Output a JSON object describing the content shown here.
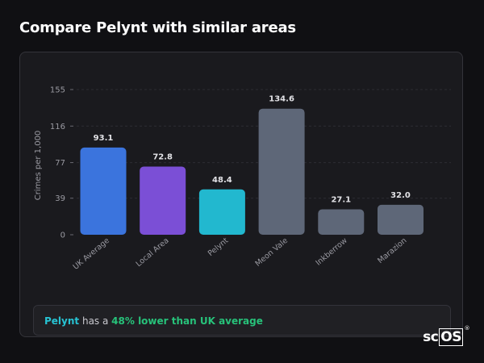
{
  "page": {
    "title": "Compare Pelynt with similar areas"
  },
  "chart_data": {
    "type": "bar",
    "title": "",
    "xlabel": "",
    "ylabel": "Crimes per 1,000",
    "ylim": [
      0,
      155
    ],
    "yticks": [
      0,
      39,
      77,
      116,
      155
    ],
    "grid": true,
    "legend": "none",
    "categories": [
      "UK Average",
      "Local Area",
      "Pelynt",
      "Meon Vale",
      "Inkberrow",
      "Marazion"
    ],
    "values": [
      93.1,
      72.8,
      48.4,
      134.6,
      27.1,
      32.0
    ],
    "value_labels": [
      "93.1",
      "72.8",
      "48.4",
      "134.6",
      "27.1",
      "32.0"
    ],
    "bar_colors": [
      "#3b74dd",
      "#7b4fd6",
      "#22b8cf",
      "#5e6778",
      "#5e6778",
      "#5e6778"
    ]
  },
  "summary": {
    "area": "Pelynt",
    "middle": " has a ",
    "difference": "48% lower than UK average"
  },
  "branding": {
    "logo_prefix": "sc",
    "logo_boxed": "OS",
    "logo_mark": "®"
  }
}
